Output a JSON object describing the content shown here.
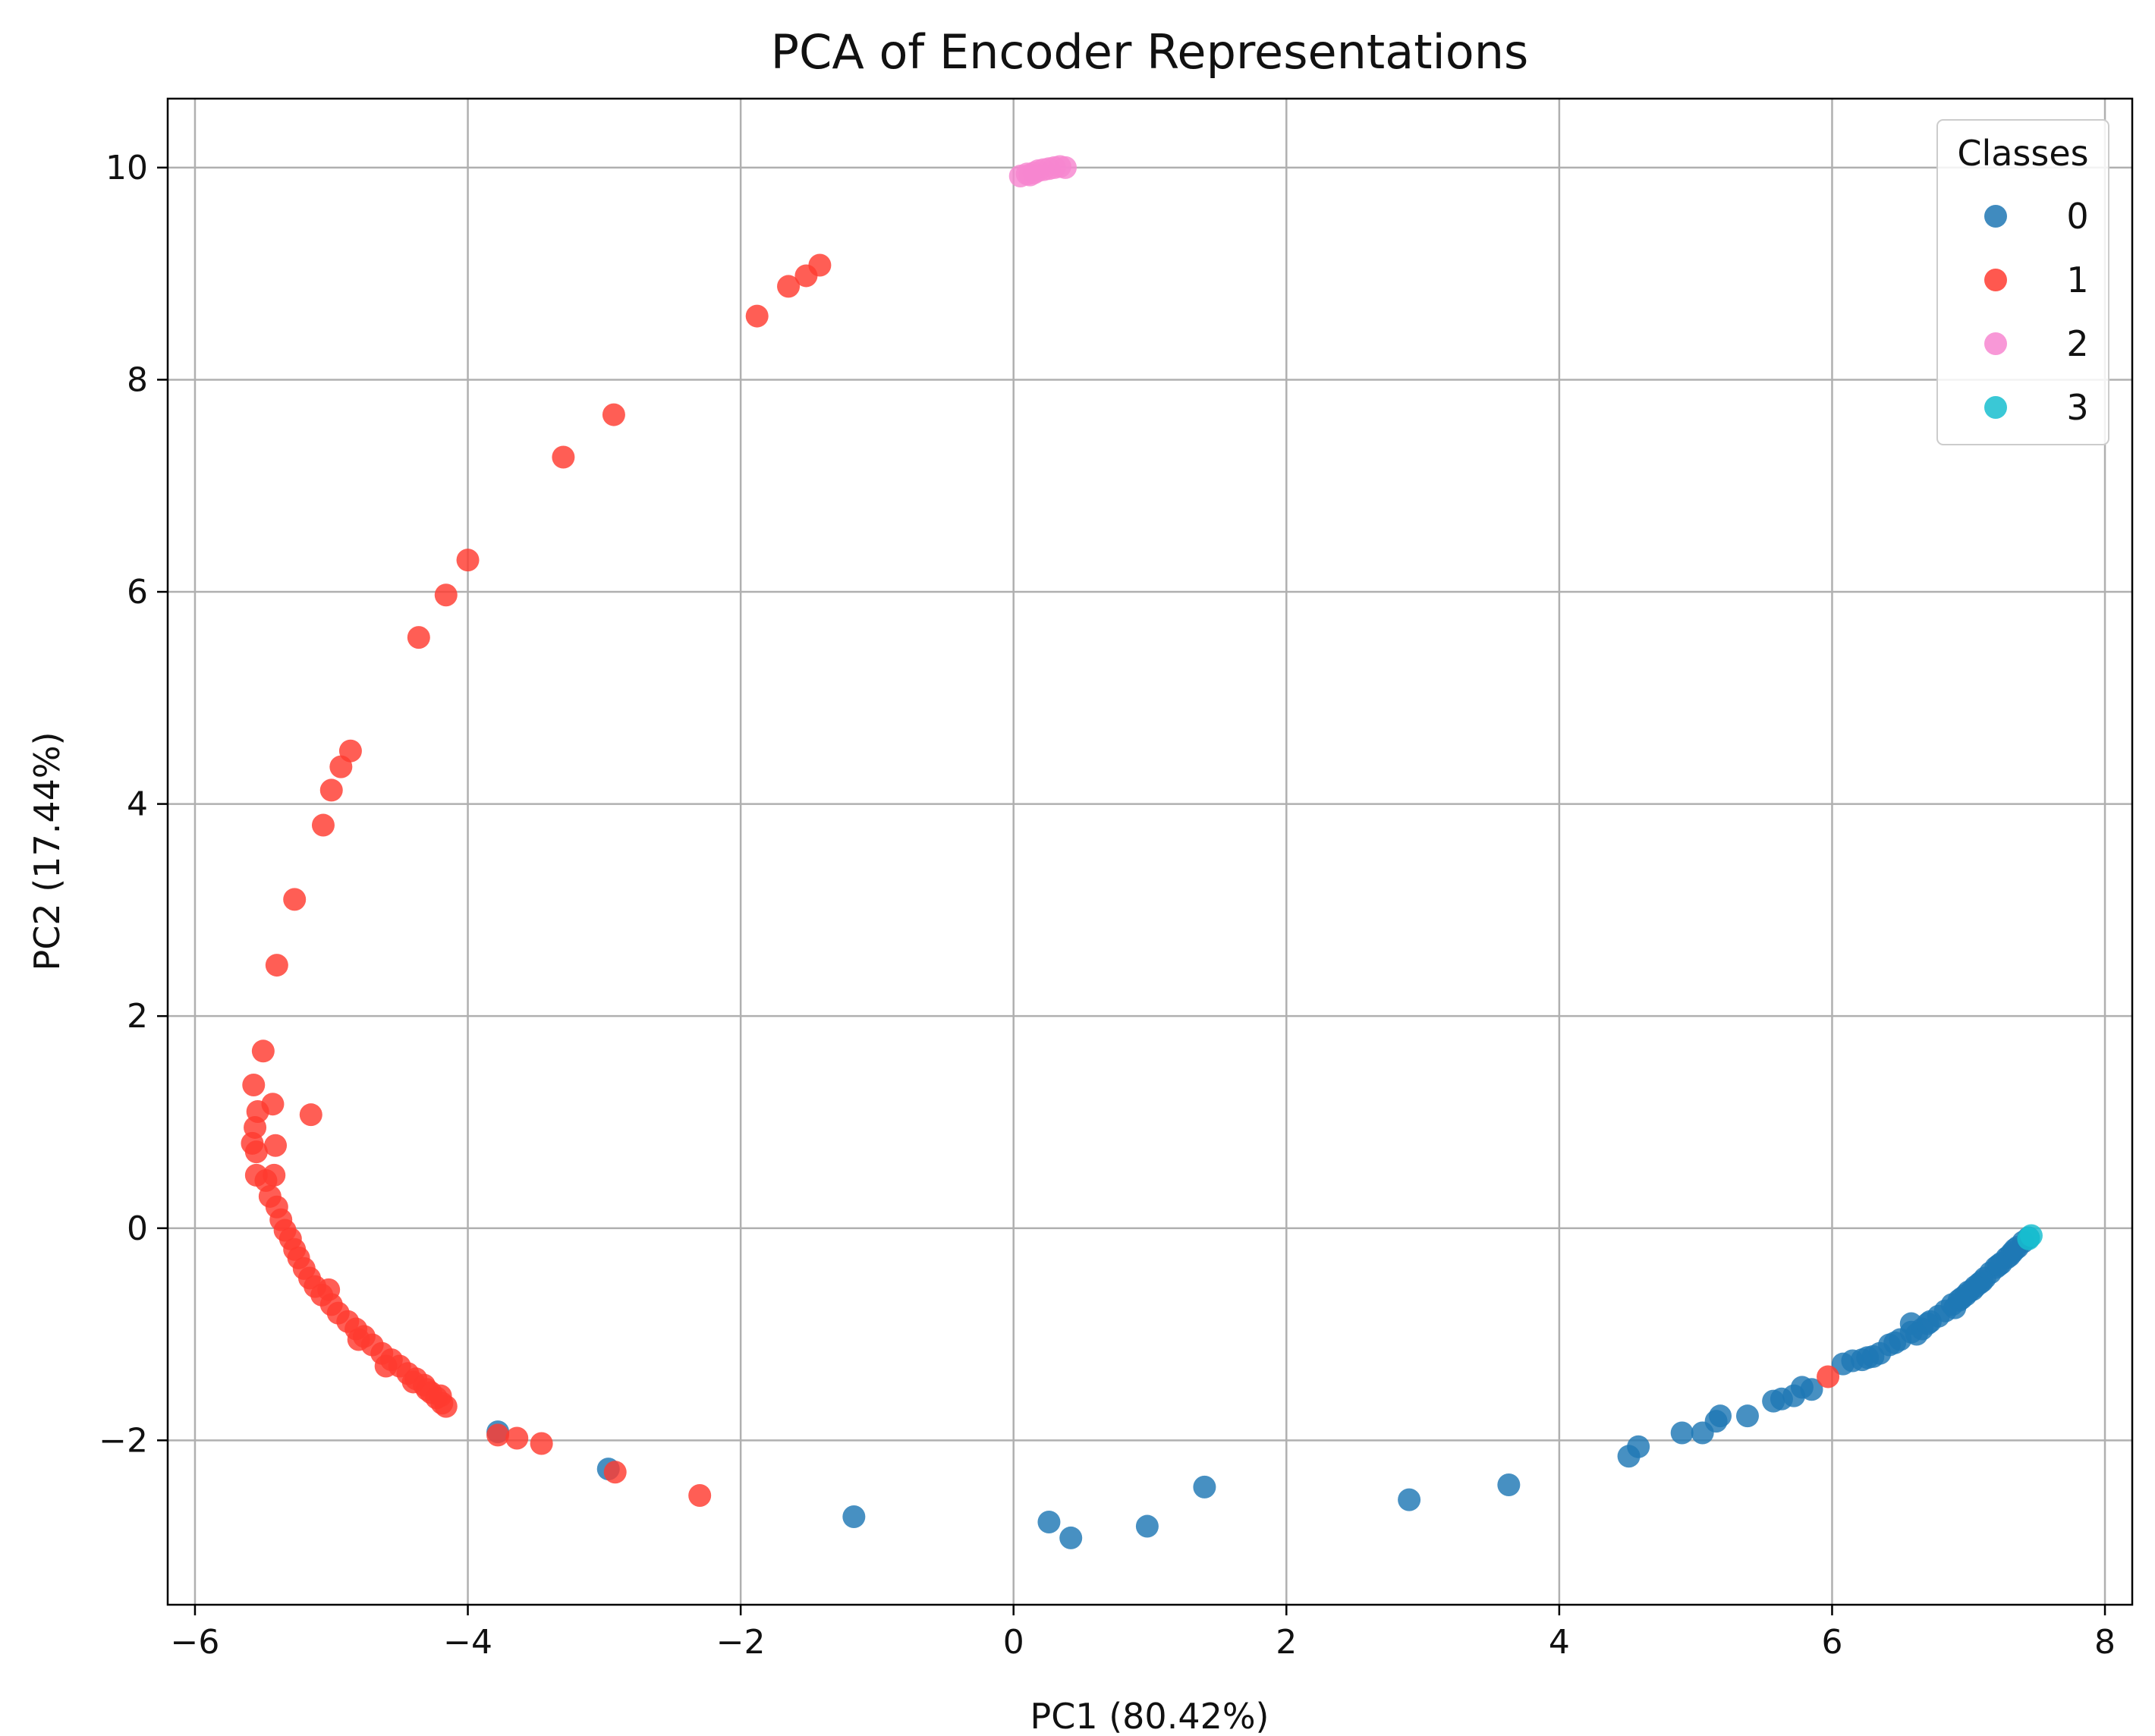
{
  "chart_data": {
    "type": "scatter",
    "title": "PCA of Encoder Representations",
    "xlabel": "PC1 (80.42%)",
    "ylabel": "PC2 (17.44%)",
    "xlim": [
      -6.2,
      8.2
    ],
    "ylim": [
      -3.55,
      10.65
    ],
    "xticks": [
      -6,
      -4,
      -2,
      0,
      2,
      4,
      6,
      8
    ],
    "xtick_labels": [
      "−6",
      "−4",
      "−2",
      "0",
      "2",
      "4",
      "6",
      "8"
    ],
    "yticks": [
      -2,
      0,
      2,
      4,
      6,
      8,
      10
    ],
    "ytick_labels": [
      "−2",
      "0",
      "2",
      "4",
      "6",
      "8",
      "10"
    ],
    "grid": true,
    "legend": {
      "title": "Classes",
      "position": "top-right"
    },
    "series": [
      {
        "name": "0",
        "color": "#1f77b4",
        "points": [
          [
            -3.78,
            -1.92
          ],
          [
            -2.97,
            -2.27
          ],
          [
            -1.17,
            -2.72
          ],
          [
            0.26,
            -2.77
          ],
          [
            0.42,
            -2.92
          ],
          [
            0.98,
            -2.81
          ],
          [
            1.4,
            -2.44
          ],
          [
            2.9,
            -2.56
          ],
          [
            3.63,
            -2.42
          ],
          [
            4.51,
            -2.15
          ],
          [
            4.58,
            -2.06
          ],
          [
            4.9,
            -1.93
          ],
          [
            5.05,
            -1.93
          ],
          [
            5.15,
            -1.82
          ],
          [
            5.18,
            -1.77
          ],
          [
            5.38,
            -1.77
          ],
          [
            5.57,
            -1.63
          ],
          [
            5.63,
            -1.61
          ],
          [
            5.72,
            -1.58
          ],
          [
            5.78,
            -1.5
          ],
          [
            5.85,
            -1.52
          ],
          [
            6.08,
            -1.28
          ],
          [
            6.15,
            -1.25
          ],
          [
            6.22,
            -1.24
          ],
          [
            6.3,
            -1.21
          ],
          [
            6.35,
            -1.18
          ],
          [
            6.42,
            -1.1
          ],
          [
            6.5,
            -1.05
          ],
          [
            6.58,
            -0.98
          ],
          [
            6.58,
            -0.9
          ],
          [
            6.66,
            -0.95
          ],
          [
            6.72,
            -0.88
          ],
          [
            6.78,
            -0.83
          ],
          [
            6.83,
            -0.78
          ],
          [
            6.88,
            -0.72
          ],
          [
            6.93,
            -0.68
          ],
          [
            6.98,
            -0.63
          ],
          [
            7.03,
            -0.58
          ],
          [
            7.08,
            -0.52
          ],
          [
            7.12,
            -0.47
          ],
          [
            7.16,
            -0.42
          ],
          [
            7.2,
            -0.37
          ],
          [
            7.24,
            -0.33
          ],
          [
            7.28,
            -0.28
          ],
          [
            7.32,
            -0.23
          ],
          [
            7.36,
            -0.18
          ],
          [
            7.4,
            -0.13
          ],
          [
            7.44,
            -0.09
          ],
          [
            7.0,
            -0.6
          ],
          [
            7.1,
            -0.5
          ],
          [
            6.9,
            -0.75
          ],
          [
            6.7,
            -0.9
          ],
          [
            6.62,
            -1.0
          ],
          [
            6.46,
            -1.08
          ],
          [
            6.26,
            -1.22
          ],
          [
            7.22,
            -0.35
          ],
          [
            7.3,
            -0.26
          ],
          [
            7.34,
            -0.2
          ],
          [
            7.05,
            -0.55
          ],
          [
            6.95,
            -0.66
          ]
        ]
      },
      {
        "name": "1",
        "color": "#ff3b30",
        "points": [
          [
            -1.42,
            9.08
          ],
          [
            -1.52,
            8.98
          ],
          [
            -1.65,
            8.88
          ],
          [
            -1.88,
            8.6
          ],
          [
            -2.93,
            7.67
          ],
          [
            -3.3,
            7.27
          ],
          [
            -4.0,
            6.3
          ],
          [
            -4.16,
            5.97
          ],
          [
            -4.36,
            5.57
          ],
          [
            -4.86,
            4.5
          ],
          [
            -4.93,
            4.35
          ],
          [
            -5.0,
            4.13
          ],
          [
            -5.06,
            3.8
          ],
          [
            -5.27,
            3.1
          ],
          [
            -5.4,
            2.48
          ],
          [
            -5.5,
            1.67
          ],
          [
            -5.57,
            1.35
          ],
          [
            -5.43,
            1.17
          ],
          [
            -5.15,
            1.07
          ],
          [
            -5.54,
            1.1
          ],
          [
            -5.56,
            0.95
          ],
          [
            -5.58,
            0.8
          ],
          [
            -5.55,
            0.72
          ],
          [
            -5.41,
            0.78
          ],
          [
            -5.55,
            0.5
          ],
          [
            -5.48,
            0.45
          ],
          [
            -5.42,
            0.5
          ],
          [
            -5.45,
            0.3
          ],
          [
            -5.4,
            0.2
          ],
          [
            -5.37,
            0.08
          ],
          [
            -5.34,
            -0.02
          ],
          [
            -5.3,
            -0.1
          ],
          [
            -5.27,
            -0.2
          ],
          [
            -5.24,
            -0.28
          ],
          [
            -5.2,
            -0.38
          ],
          [
            -5.16,
            -0.47
          ],
          [
            -5.12,
            -0.55
          ],
          [
            -5.07,
            -0.63
          ],
          [
            -5.02,
            -0.58
          ],
          [
            -5.0,
            -0.72
          ],
          [
            -4.95,
            -0.8
          ],
          [
            -4.88,
            -0.88
          ],
          [
            -4.82,
            -0.95
          ],
          [
            -4.76,
            -1.02
          ],
          [
            -4.7,
            -1.1
          ],
          [
            -4.63,
            -1.18
          ],
          [
            -4.56,
            -1.24
          ],
          [
            -4.5,
            -1.3
          ],
          [
            -4.44,
            -1.37
          ],
          [
            -4.38,
            -1.42
          ],
          [
            -4.32,
            -1.48
          ],
          [
            -4.27,
            -1.55
          ],
          [
            -4.23,
            -1.6
          ],
          [
            -4.19,
            -1.65
          ],
          [
            -4.16,
            -1.68
          ],
          [
            -4.2,
            -1.58
          ],
          [
            -4.3,
            -1.52
          ],
          [
            -4.4,
            -1.45
          ],
          [
            -4.6,
            -1.3
          ],
          [
            -4.8,
            -1.05
          ],
          [
            -3.78,
            -1.95
          ],
          [
            -3.64,
            -1.98
          ],
          [
            -3.46,
            -2.03
          ],
          [
            -2.92,
            -2.3
          ],
          [
            -2.3,
            -2.52
          ],
          [
            5.97,
            -1.4
          ]
        ]
      },
      {
        "name": "2",
        "color": "#f786d0",
        "points": [
          [
            0.05,
            9.92
          ],
          [
            0.1,
            9.94
          ],
          [
            0.15,
            9.95
          ],
          [
            0.18,
            9.97
          ],
          [
            0.22,
            9.98
          ],
          [
            0.26,
            9.99
          ],
          [
            0.3,
            10.0
          ],
          [
            0.34,
            10.01
          ],
          [
            0.38,
            10.0
          ],
          [
            0.12,
            9.93
          ]
        ]
      },
      {
        "name": "3",
        "color": "#17becf",
        "points": [
          [
            7.46,
            -0.07
          ],
          [
            7.44,
            -0.1
          ]
        ]
      }
    ]
  }
}
